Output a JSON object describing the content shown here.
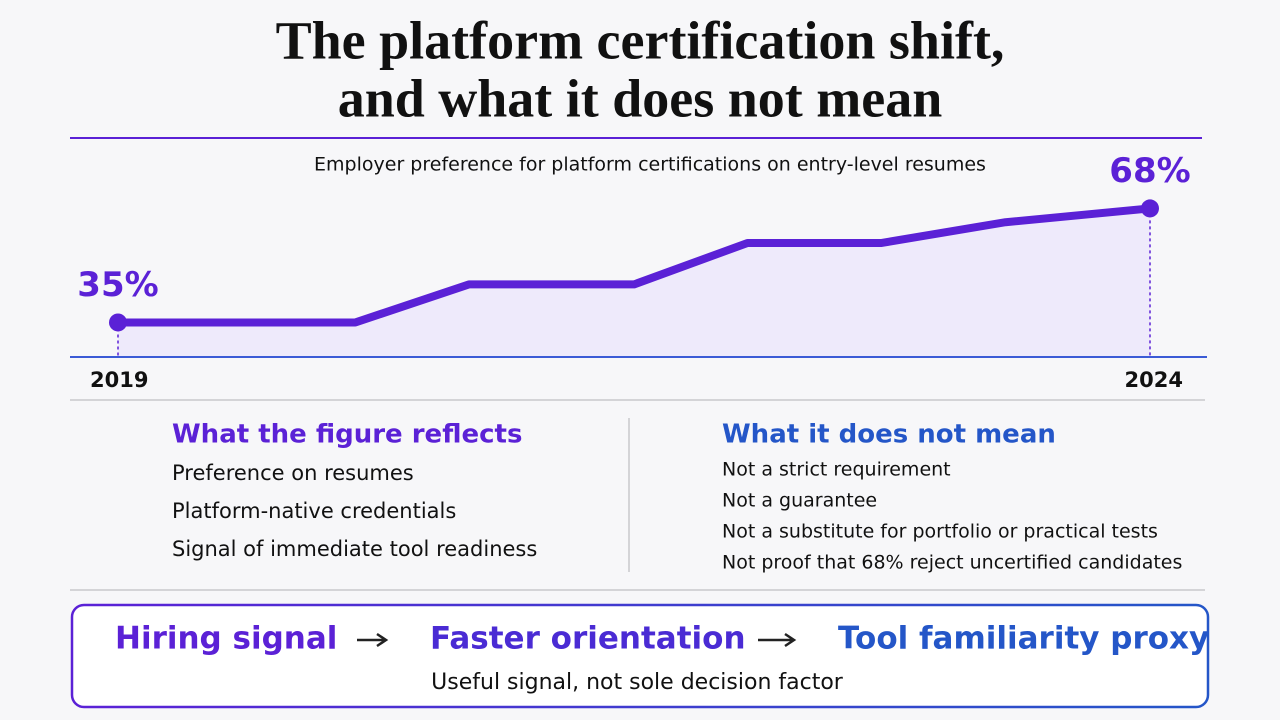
{
  "title_lines": [
    "The platform certification shift,",
    "and what it does not mean"
  ],
  "chart_data": {
    "type": "line",
    "subtitle": "Employer preference for platform certifications on entry-level resumes",
    "x": [
      2019,
      2020.15,
      2020.7,
      2021.5,
      2022.05,
      2022.7,
      2023.3,
      2024
    ],
    "values": [
      35,
      35,
      46,
      46,
      58,
      58,
      64,
      68
    ],
    "value_labels": [
      "35%",
      null,
      null,
      null,
      null,
      null,
      null,
      "68%"
    ],
    "xlim": [
      2019,
      2024
    ],
    "ylim": [
      25,
      70
    ],
    "xticks": [
      2019,
      2024
    ],
    "color": "#5b21d6",
    "fill": "#ebe6fb",
    "grid": false
  },
  "left_panel": {
    "heading": "What the figure reflects",
    "items": [
      "Preference on resumes",
      "Platform-native credentials",
      "Signal of immediate tool readiness"
    ]
  },
  "right_panel": {
    "heading": "What it does not mean",
    "items": [
      "Not a strict requirement",
      "Not a guarantee",
      "Not a substitute for portfolio or practical tests",
      "Not proof that 68% reject uncertified candidates"
    ]
  },
  "flow": {
    "steps": [
      "Hiring signal",
      "Faster orientation",
      "Tool familiarity proxy"
    ],
    "note": "Useful signal, not sole decision factor"
  }
}
